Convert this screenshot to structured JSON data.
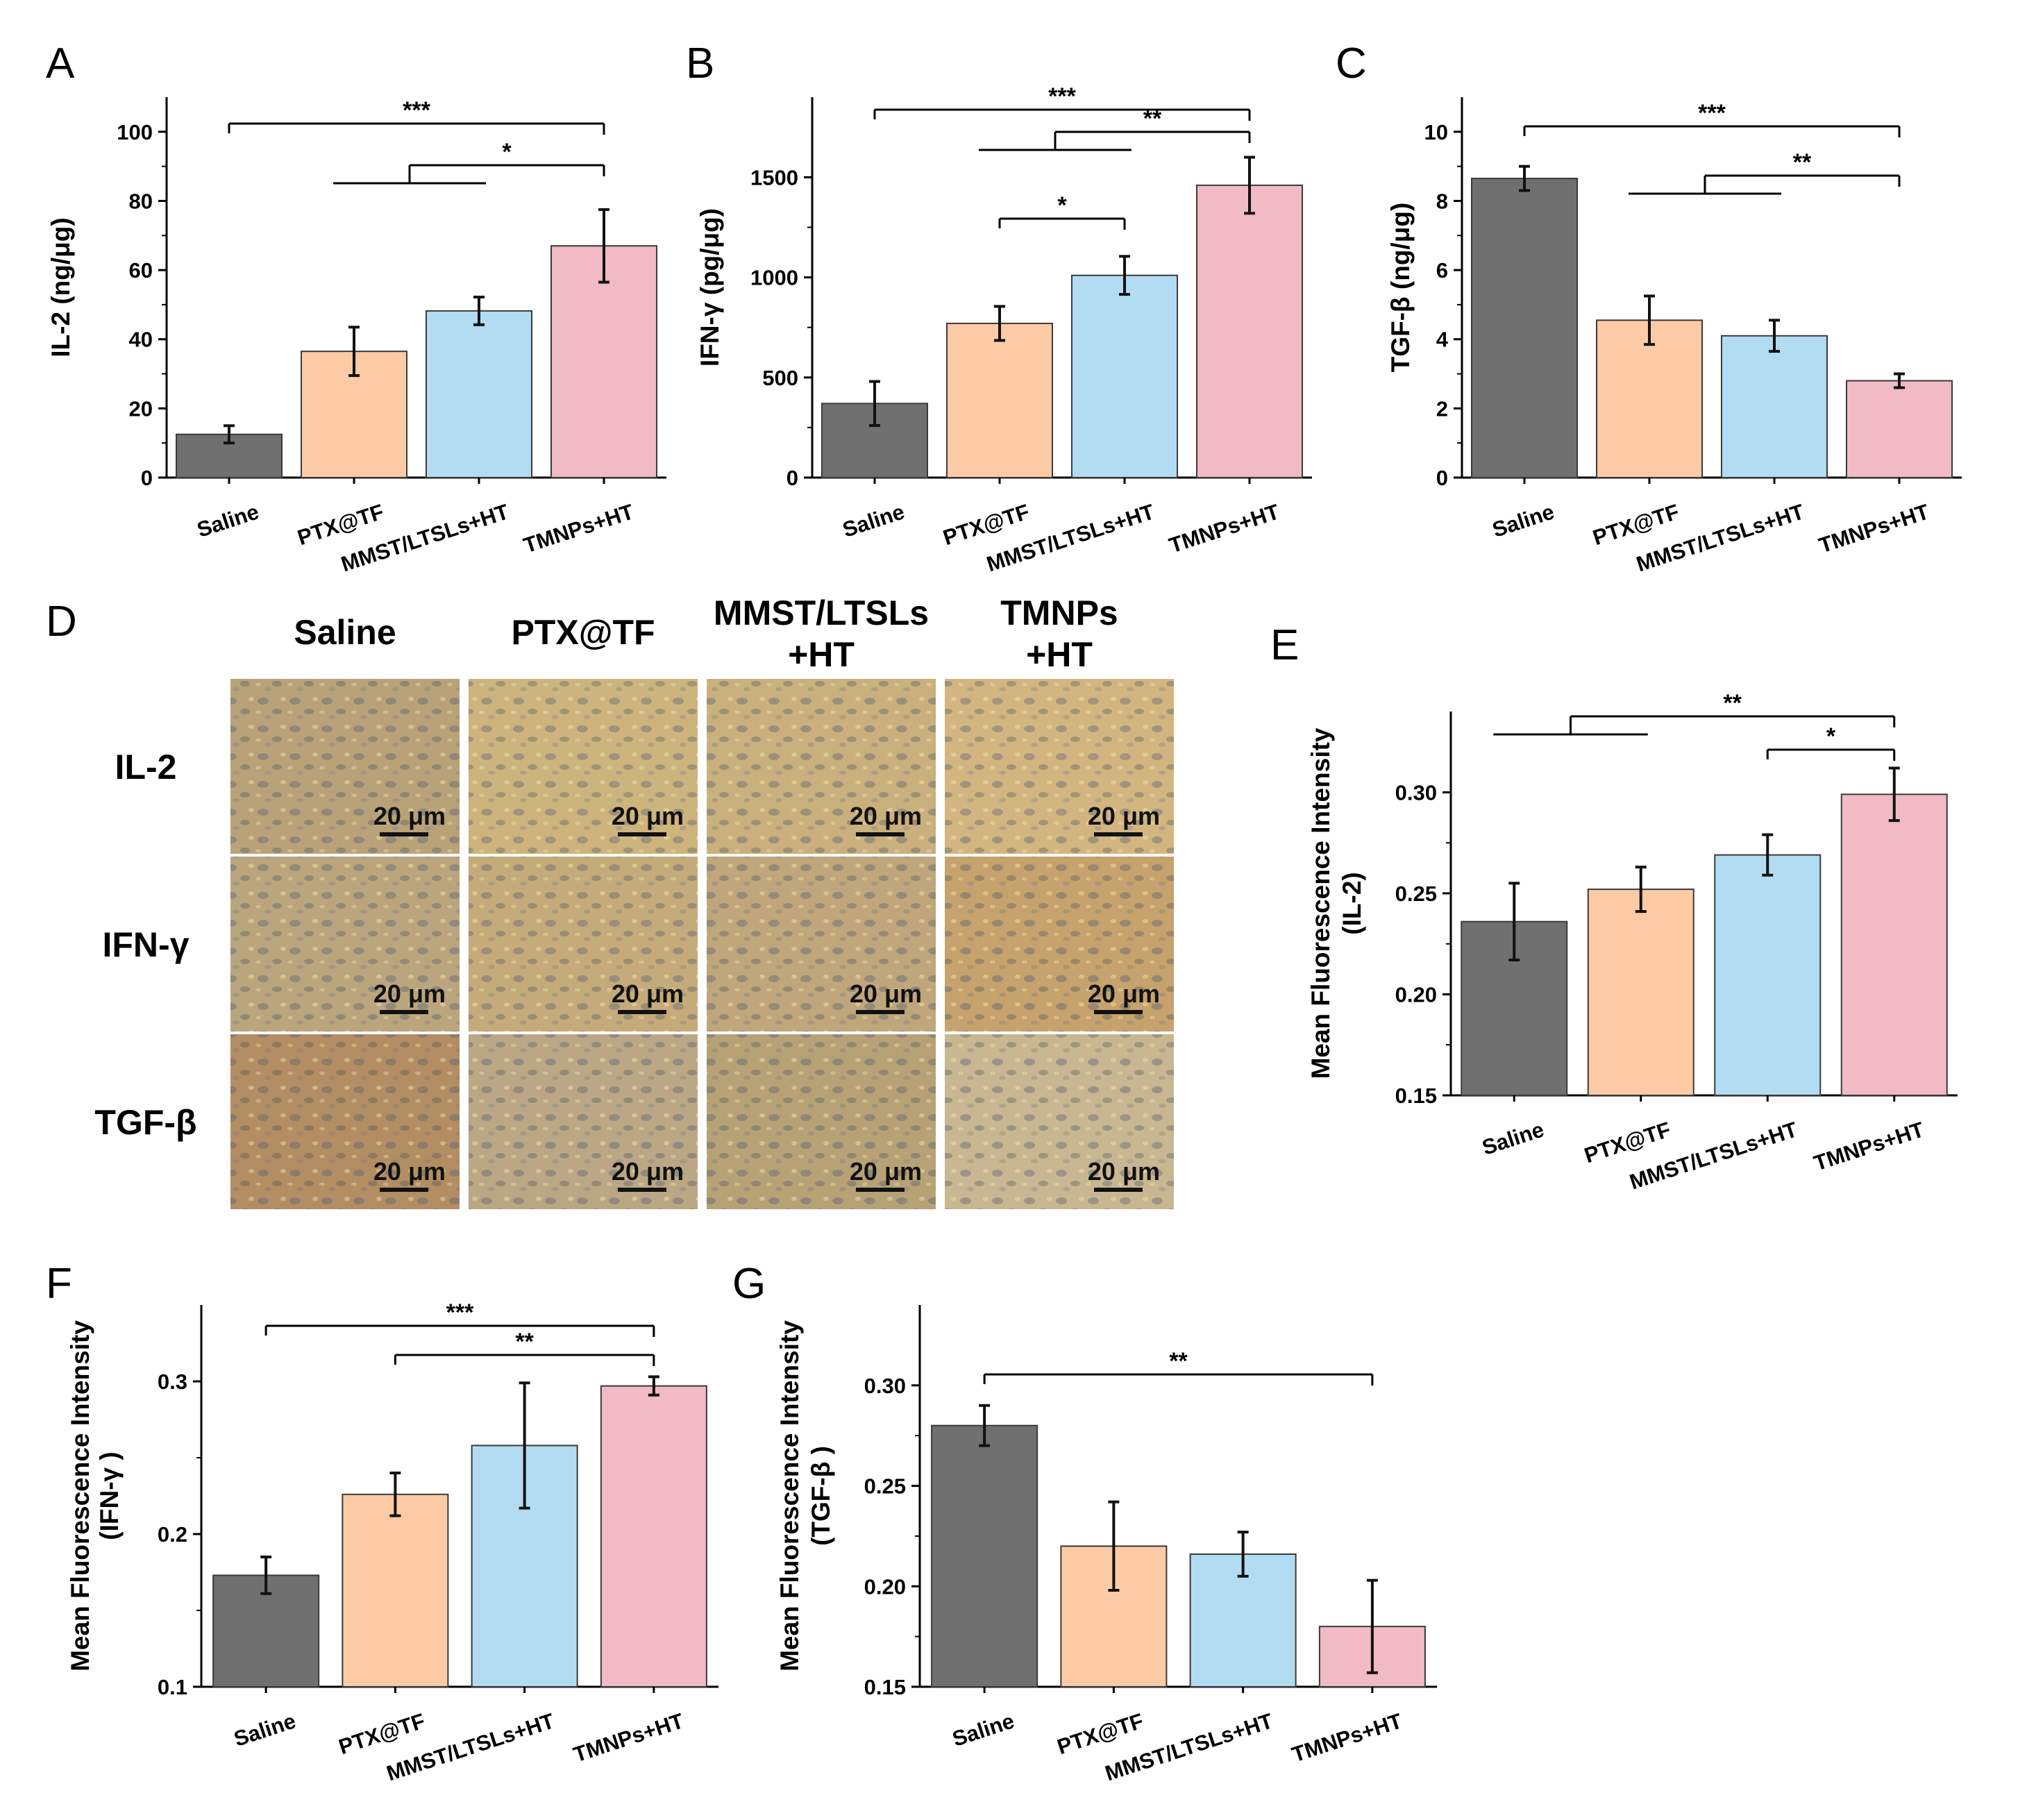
{
  "colors": {
    "Saline": "#707070",
    "PTX@TF": "#fccaa5",
    "MMST/LTSLs+HT": "#b2dcf2",
    "TMNPs+HT": "#f1bac4"
  },
  "chart_data": [
    {
      "panel": "A",
      "type": "bar",
      "categories": [
        "Saline",
        "PTX@TF",
        "MMST/LTSLs+HT",
        "TMNPs+HT"
      ],
      "values": [
        12.5,
        36.5,
        48.2,
        67
      ],
      "errors": [
        2.5,
        7,
        4,
        10.5
      ],
      "ylabel": "IL-2 (ng/μg)",
      "ylim": [
        0,
        110
      ],
      "yticks": [
        "0",
        "20",
        "40",
        "60",
        "80",
        "100"
      ],
      "significance": [
        {
          "label": "***",
          "from": [
            0
          ],
          "to": 3
        },
        {
          "label": "*",
          "from": [
            1,
            2
          ],
          "to": 3
        }
      ]
    },
    {
      "panel": "B",
      "type": "bar",
      "categories": [
        "Saline",
        "PTX@TF",
        "MMST/LTSLs+HT",
        "TMNPs+HT"
      ],
      "values": [
        370,
        770,
        1010,
        1460
      ],
      "errors": [
        110,
        85,
        95,
        140
      ],
      "ylabel": "IFN-γ (pg/μg)",
      "ylim": [
        0,
        1900
      ],
      "yticks": [
        "0",
        "500",
        "1000",
        "1500"
      ],
      "significance": [
        {
          "label": "***",
          "from": [
            0
          ],
          "to": 3
        },
        {
          "label": "**",
          "from": [
            1,
            2
          ],
          "to": 3
        },
        {
          "label": "*",
          "from": [
            1
          ],
          "to": 2
        }
      ]
    },
    {
      "panel": "C",
      "type": "bar",
      "categories": [
        "Saline",
        "PTX@TF",
        "MMST/LTSLs+HT",
        "TMNPs+HT"
      ],
      "values": [
        8.65,
        4.55,
        4.1,
        2.8
      ],
      "errors": [
        0.35,
        0.7,
        0.45,
        0.2
      ],
      "ylabel": "TGF-β (ng/μg)",
      "ylim": [
        0,
        11
      ],
      "yticks": [
        "0",
        "2",
        "4",
        "6",
        "8",
        "10"
      ],
      "significance": [
        {
          "label": "***",
          "from": [
            0
          ],
          "to": 3
        },
        {
          "label": "**",
          "from": [
            1,
            2
          ],
          "to": 3
        }
      ]
    },
    {
      "panel": "E",
      "type": "bar",
      "categories": [
        "Saline",
        "PTX@TF",
        "MMST/LTSLs+HT",
        "TMNPs+HT"
      ],
      "values": [
        0.236,
        0.252,
        0.269,
        0.299
      ],
      "errors": [
        0.019,
        0.011,
        0.01,
        0.013
      ],
      "ylabel": [
        "Mean Fluorescence Intensity",
        "(IL-2)"
      ],
      "ylim": [
        0.15,
        0.34
      ],
      "yticks": [
        "0.15",
        "0.20",
        "0.25",
        "0.30"
      ],
      "significance": [
        {
          "label": "**",
          "from": [
            0,
            1
          ],
          "to": 3
        },
        {
          "label": "*",
          "from": [
            2
          ],
          "to": 3
        }
      ]
    },
    {
      "panel": "F",
      "type": "bar",
      "categories": [
        "Saline",
        "PTX@TF",
        "MMST/LTSLs+HT",
        "TMNPs+HT"
      ],
      "values": [
        0.173,
        0.226,
        0.258,
        0.297
      ],
      "errors": [
        0.012,
        0.014,
        0.041,
        0.006
      ],
      "ylabel": [
        "Mean Fluorescence Intensity",
        "(IFN-γ )"
      ],
      "ylim": [
        0.1,
        0.35
      ],
      "yticks": [
        "0.1",
        "0.2",
        "0.3"
      ],
      "significance": [
        {
          "label": "***",
          "from": [
            0
          ],
          "to": 3
        },
        {
          "label": "**",
          "from": [
            1
          ],
          "to": 3
        }
      ]
    },
    {
      "panel": "G",
      "type": "bar",
      "categories": [
        "Saline",
        "PTX@TF",
        "MMST/LTSLs+HT",
        "TMNPs+HT"
      ],
      "values": [
        0.28,
        0.22,
        0.216,
        0.18
      ],
      "errors": [
        0.01,
        0.022,
        0.011,
        0.023
      ],
      "ylabel": [
        "Mean Fluorescence Intensity",
        "(TGF-β )"
      ],
      "ylim": [
        0.15,
        0.34
      ],
      "yticks": [
        "0.15",
        "0.20",
        "0.25",
        "0.30"
      ],
      "significance": [
        {
          "label": "**",
          "from": [
            0
          ],
          "to": 3
        }
      ]
    }
  ],
  "micrograph_panel": {
    "panel": "D",
    "column_headers": [
      [
        "Saline"
      ],
      [
        "PTX@TF"
      ],
      [
        "MMST/LTSLs",
        "+HT"
      ],
      [
        "TMNPs",
        "+HT"
      ]
    ],
    "row_labels": [
      "IL-2",
      "IFN-γ",
      "TGF-β"
    ],
    "scale_bar_label": "20 μm",
    "tile_tones": [
      [
        "#b9a278",
        "#cdb47c",
        "#c9b07c",
        "#d3b67f"
      ],
      [
        "#bba57d",
        "#c6ab7a",
        "#bfa67b",
        "#c6a26c"
      ],
      [
        "#b38e62",
        "#bca785",
        "#b7a276",
        "#c8b790"
      ]
    ]
  }
}
